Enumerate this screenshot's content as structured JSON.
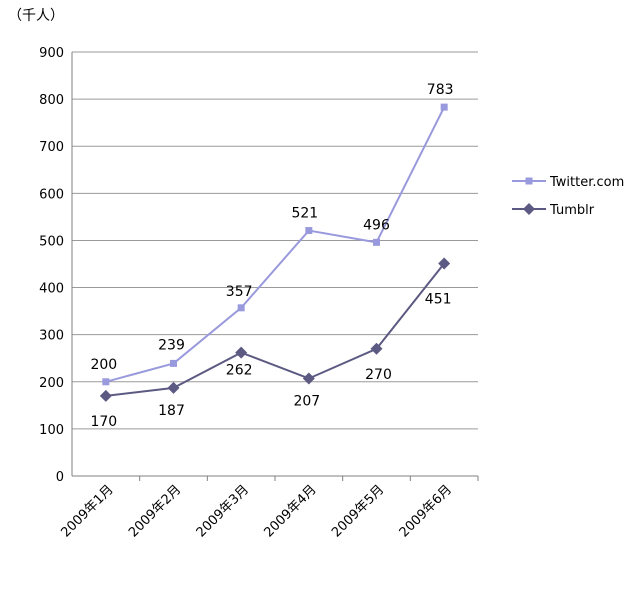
{
  "chart_data": {
    "type": "line",
    "unit_label": "（千人）",
    "categories": [
      "2009年1月",
      "2009年2月",
      "2009年3月",
      "2009年4月",
      "2009年5月",
      "2009年6月"
    ],
    "ylim": [
      0,
      900
    ],
    "yticks": [
      0,
      100,
      200,
      300,
      400,
      500,
      600,
      700,
      800,
      900
    ],
    "grid": true,
    "legend_position": "right",
    "series": [
      {
        "name": "Twitter.com",
        "color": "#9999dd",
        "marker": "square",
        "values": [
          200,
          239,
          357,
          521,
          496,
          783
        ],
        "labels": [
          "200",
          "239",
          "357",
          "521",
          "496",
          "783"
        ]
      },
      {
        "name": "Tumblr",
        "color": "#5c5a82",
        "marker": "diamond",
        "values": [
          170,
          187,
          262,
          207,
          270,
          451
        ],
        "labels": [
          "170",
          "187",
          "262",
          "207",
          "270",
          "451"
        ]
      }
    ]
  }
}
